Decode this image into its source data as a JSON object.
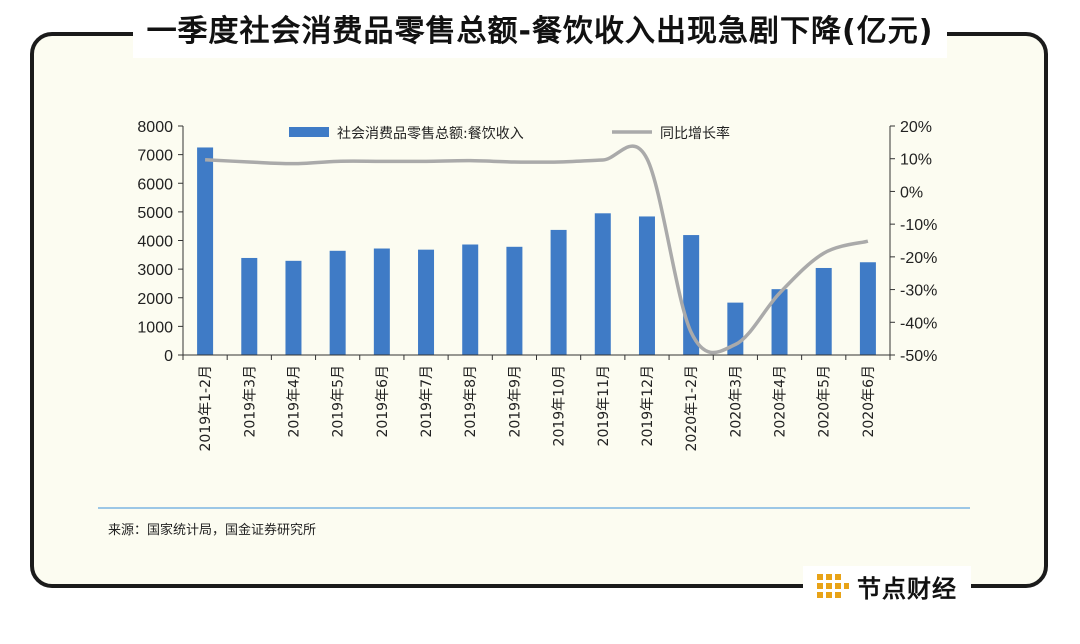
{
  "title": "一季度社会消费品零售总额-餐饮收入出现急剧下降(亿元)",
  "source": "来源：国家统计局，国金证券研究所",
  "brand": {
    "name": "节点财经",
    "icon": "grid-logo-icon"
  },
  "colors": {
    "bar": "#3f7bc6",
    "line": "#aaaaaa",
    "divider": "#9cc7e6",
    "frame_bg": "#fcfcf1"
  },
  "chart_data": {
    "type": "bar+line",
    "categories": [
      "2019年1-2月",
      "2019年3月",
      "2019年4月",
      "2019年5月",
      "2019年6月",
      "2019年7月",
      "2019年8月",
      "2019年9月",
      "2019年10月",
      "2019年11月",
      "2019年12月",
      "2020年1-2月",
      "2020年3月",
      "2020年4月",
      "2020年5月",
      "2020年6月"
    ],
    "series": [
      {
        "name": "社会消费品零售总额:餐饮收入",
        "type": "bar",
        "axis": "left",
        "values": [
          7250,
          3390,
          3290,
          3640,
          3720,
          3680,
          3860,
          3780,
          4370,
          4950,
          4840,
          4190,
          1830,
          2300,
          3040,
          3240
        ]
      },
      {
        "name": "同比增长率",
        "type": "line",
        "axis": "right",
        "values": [
          9.7,
          9.0,
          8.5,
          9.2,
          9.2,
          9.2,
          9.4,
          9.0,
          9.0,
          9.6,
          10.0,
          -43.1,
          -46.8,
          -31.1,
          -18.9,
          -15.2
        ]
      }
    ],
    "y_left": {
      "min": 0,
      "max": 8000,
      "ticks": [
        0,
        1000,
        2000,
        3000,
        4000,
        5000,
        6000,
        7000,
        8000
      ]
    },
    "y_right": {
      "min": -50,
      "max": 20,
      "ticks": [
        -50,
        -40,
        -30,
        -20,
        -10,
        0,
        10,
        20
      ],
      "tick_labels": [
        "-50%",
        "-40%",
        "-30%",
        "-20%",
        "-10%",
        "0%",
        "10%",
        "20%"
      ]
    },
    "legend_position": "top-center",
    "grid": false
  }
}
